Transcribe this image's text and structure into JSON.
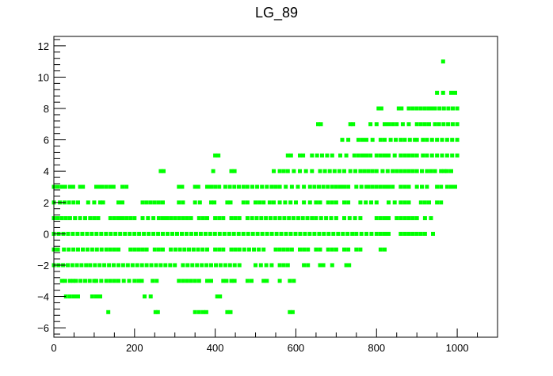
{
  "chart_data": {
    "type": "scatter",
    "title": "LG_89",
    "xlabel": "",
    "ylabel": "",
    "xlim": [
      0,
      1100
    ],
    "ylim": [
      -6.6,
      12.6
    ],
    "x_ticks": [
      0,
      200,
      400,
      600,
      800,
      1000
    ],
    "y_ticks": [
      -6,
      -4,
      -2,
      0,
      2,
      4,
      6,
      8,
      10,
      12
    ],
    "x_tick_labels": [
      "0",
      "200",
      "400",
      "600",
      "800",
      "1000"
    ],
    "y_tick_labels": [
      "−6",
      "−4",
      "−2",
      "0",
      "2",
      "4",
      "6",
      "8",
      "10",
      "12"
    ],
    "grid": false,
    "marker_color": "#00ff00",
    "frame_color": "#000000",
    "rows": [
      {
        "y": 11,
        "segments": [
          [
            965,
            970
          ]
        ]
      },
      {
        "y": 9,
        "segments": [
          [
            950,
            965
          ],
          [
            985,
            995
          ]
        ]
      },
      {
        "y": 8,
        "segments": [
          [
            805,
            812
          ],
          [
            855,
            862
          ],
          [
            880,
            890
          ],
          [
            900,
            910
          ],
          [
            920,
            940
          ],
          [
            945,
            1000
          ]
        ]
      },
      {
        "y": 7,
        "segments": [
          [
            655,
            662
          ],
          [
            735,
            742
          ],
          [
            785,
            800
          ],
          [
            820,
            830
          ],
          [
            840,
            850
          ],
          [
            865,
            880
          ],
          [
            900,
            920
          ],
          [
            930,
            945
          ],
          [
            955,
            1000
          ]
        ]
      },
      {
        "y": 6,
        "segments": [
          [
            715,
            730
          ],
          [
            755,
            765
          ],
          [
            775,
            790
          ],
          [
            810,
            820
          ],
          [
            835,
            860
          ],
          [
            870,
            895
          ],
          [
            900,
            915
          ],
          [
            925,
            1000
          ]
        ]
      },
      {
        "y": 5,
        "segments": [
          [
            400,
            408
          ],
          [
            580,
            588
          ],
          [
            610,
            618
          ],
          [
            640,
            690
          ],
          [
            710,
            725
          ],
          [
            745,
            765
          ],
          [
            775,
            785
          ],
          [
            800,
            830
          ],
          [
            845,
            860
          ],
          [
            870,
            890
          ],
          [
            900,
            915
          ],
          [
            925,
            1000
          ]
        ]
      },
      {
        "y": 4,
        "segments": [
          [
            265,
            272
          ],
          [
            395,
            400
          ],
          [
            440,
            448
          ],
          [
            545,
            560
          ],
          [
            570,
            580
          ],
          [
            595,
            610
          ],
          [
            625,
            640
          ],
          [
            660,
            720
          ],
          [
            735,
            760
          ],
          [
            770,
            800
          ],
          [
            815,
            840
          ],
          [
            850,
            860
          ],
          [
            870,
            890
          ],
          [
            900,
            925
          ],
          [
            935,
            945
          ],
          [
            960,
            968
          ],
          [
            975,
            985
          ]
        ]
      },
      {
        "y": 3,
        "segments": [
          [
            0,
            10
          ],
          [
            20,
            28
          ],
          [
            40,
            48
          ],
          [
            65,
            72
          ],
          [
            105,
            112
          ],
          [
            120,
            130
          ],
          [
            140,
            148
          ],
          [
            170,
            180
          ],
          [
            310,
            318
          ],
          [
            350,
            358
          ],
          [
            380,
            390
          ],
          [
            400,
            410
          ],
          [
            425,
            470
          ],
          [
            480,
            540
          ],
          [
            550,
            560
          ],
          [
            575,
            590
          ],
          [
            605,
            620
          ],
          [
            635,
            690
          ],
          [
            700,
            730
          ],
          [
            750,
            775
          ],
          [
            780,
            800
          ],
          [
            810,
            840
          ],
          [
            860,
            880
          ],
          [
            900,
            925
          ],
          [
            950,
            960
          ],
          [
            975,
            995
          ]
        ]
      },
      {
        "y": 2,
        "segments": [
          [
            0,
            5
          ],
          [
            15,
            60
          ],
          [
            85,
            100
          ],
          [
            115,
            122
          ],
          [
            160,
            170
          ],
          [
            220,
            230
          ],
          [
            240,
            250
          ],
          [
            260,
            270
          ],
          [
            310,
            320
          ],
          [
            350,
            362
          ],
          [
            390,
            398
          ],
          [
            430,
            438
          ],
          [
            470,
            480
          ],
          [
            500,
            520
          ],
          [
            535,
            545
          ],
          [
            560,
            600
          ],
          [
            620,
            635
          ],
          [
            650,
            660
          ],
          [
            680,
            700
          ],
          [
            720,
            730
          ],
          [
            760,
            800
          ],
          [
            830,
            845
          ],
          [
            860,
            880
          ],
          [
            910,
            930
          ],
          [
            950,
            960
          ]
        ]
      },
      {
        "y": 1,
        "segments": [
          [
            0,
            30
          ],
          [
            40,
            90
          ],
          [
            100,
            110
          ],
          [
            140,
            170
          ],
          [
            180,
            200
          ],
          [
            220,
            260
          ],
          [
            270,
            300
          ],
          [
            310,
            340
          ],
          [
            360,
            380
          ],
          [
            400,
            420
          ],
          [
            440,
            460
          ],
          [
            480,
            640
          ],
          [
            650,
            700
          ],
          [
            720,
            760
          ],
          [
            800,
            830
          ],
          [
            850,
            870
          ],
          [
            880,
            900
          ],
          [
            920,
            935
          ]
        ]
      },
      {
        "y": 0,
        "segments": [
          [
            0,
            740
          ],
          [
            750,
            800
          ],
          [
            810,
            830
          ],
          [
            860,
            890
          ],
          [
            900,
            905
          ],
          [
            910,
            920
          ],
          [
            940,
            945
          ]
        ]
      },
      {
        "y": -1,
        "segments": [
          [
            0,
            10
          ],
          [
            25,
            130
          ],
          [
            140,
            160
          ],
          [
            190,
            200
          ],
          [
            210,
            230
          ],
          [
            250,
            270
          ],
          [
            290,
            380
          ],
          [
            400,
            420
          ],
          [
            440,
            450
          ],
          [
            460,
            520
          ],
          [
            550,
            570
          ],
          [
            580,
            590
          ],
          [
            610,
            630
          ],
          [
            650,
            660
          ],
          [
            680,
            700
          ],
          [
            720,
            730
          ],
          [
            750,
            760
          ],
          [
            810,
            820
          ]
        ]
      },
      {
        "y": -2,
        "segments": [
          [
            0,
            80
          ],
          [
            90,
            300
          ],
          [
            320,
            460
          ],
          [
            500,
            540
          ],
          [
            560,
            580
          ],
          [
            620,
            630
          ],
          [
            660,
            668
          ],
          [
            690,
            695
          ],
          [
            725,
            732
          ]
        ]
      },
      {
        "y": -3,
        "segments": [
          [
            20,
            28
          ],
          [
            40,
            48
          ],
          [
            55,
            100
          ],
          [
            105,
            130
          ],
          [
            140,
            150
          ],
          [
            160,
            200
          ],
          [
            210,
            218
          ],
          [
            245,
            255
          ],
          [
            310,
            340
          ],
          [
            350,
            360
          ],
          [
            380,
            390
          ],
          [
            420,
            428
          ],
          [
            440,
            448
          ],
          [
            480,
            490
          ],
          [
            520,
            528
          ],
          [
            560,
            565
          ],
          [
            585,
            595
          ]
        ]
      },
      {
        "y": -4,
        "segments": [
          [
            30,
            60
          ],
          [
            95,
            115
          ],
          [
            225,
            240
          ],
          [
            405,
            412
          ]
        ]
      },
      {
        "y": -5,
        "segments": [
          [
            135,
            140
          ],
          [
            252,
            258
          ],
          [
            350,
            360
          ],
          [
            370,
            378
          ],
          [
            430,
            438
          ],
          [
            585,
            592
          ]
        ]
      }
    ]
  }
}
